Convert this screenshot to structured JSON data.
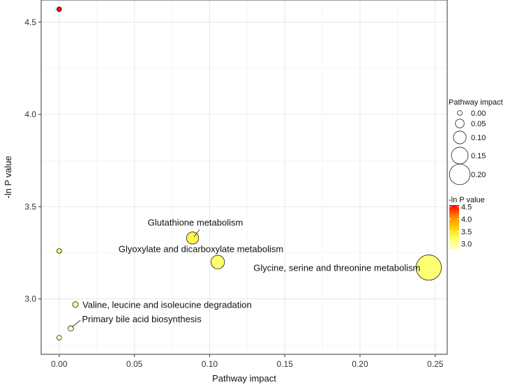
{
  "chart_data": {
    "type": "scatter",
    "xlabel": "Pathway impact",
    "ylabel": "-ln P value",
    "xlim": [
      -0.012,
      0.258
    ],
    "ylim": [
      2.7,
      4.62
    ],
    "x_ticks": [
      "0.00",
      "0.05",
      "0.10",
      "0.15",
      "0.20",
      "0.25"
    ],
    "y_ticks": [
      "3.0",
      "3.5",
      "4.0",
      "4.5"
    ],
    "grid": true,
    "points": [
      {
        "x": 0.0,
        "y": 4.57,
        "impact": 0.0,
        "label": ""
      },
      {
        "x": 0.0,
        "y": 3.26,
        "impact": 0.0,
        "label": ""
      },
      {
        "x": 0.0,
        "y": 2.79,
        "impact": 0.0,
        "label": ""
      },
      {
        "x": 0.0077,
        "y": 2.84,
        "impact": 0.0077,
        "label": "Primary bile acid biosynthesis"
      },
      {
        "x": 0.0108,
        "y": 2.97,
        "impact": 0.0108,
        "label": "Valine, leucine and isoleucine degradation"
      },
      {
        "x": 0.0887,
        "y": 3.33,
        "impact": 0.0887,
        "label": "Glutathione metabolism"
      },
      {
        "x": 0.1054,
        "y": 3.2,
        "impact": 0.1054,
        "label": "Glyoxylate and dicarboxylate metabolism"
      },
      {
        "x": 0.2457,
        "y": 3.17,
        "impact": 0.2457,
        "label": "Glycine, serine and threonine metabolism"
      }
    ],
    "size_legend": {
      "title": "Pathway impact",
      "entries": [
        "0.00",
        "0.05",
        "0.10",
        "0.15",
        "0.20"
      ],
      "values": [
        0.0,
        0.05,
        0.1,
        0.15,
        0.2
      ]
    },
    "color_legend": {
      "title": "-ln P value",
      "labels": [
        "4.5",
        "4.0",
        "3.5",
        "3.0"
      ],
      "values": [
        4.5,
        4.0,
        3.5,
        3.0
      ],
      "range": [
        2.79,
        4.57
      ],
      "colors": [
        "#ffffc4",
        "#ffff66",
        "#ffcc00",
        "#ff8000",
        "#ff0000"
      ]
    }
  }
}
